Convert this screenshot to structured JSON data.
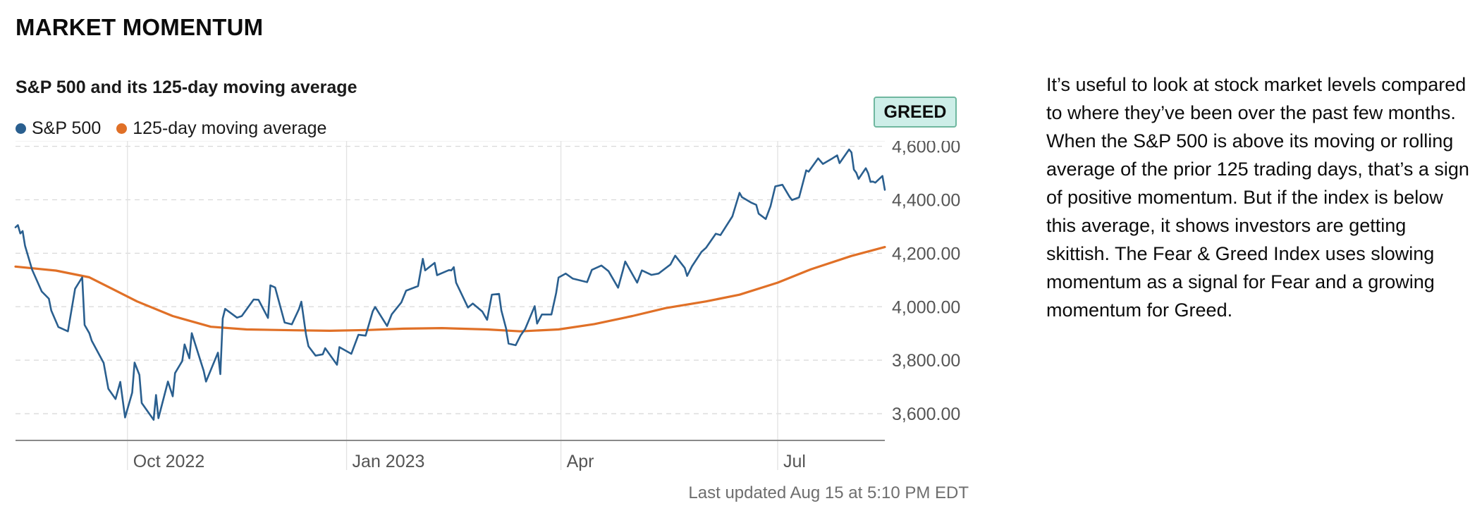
{
  "section_title": "MARKET MOMENTUM",
  "chart_title": "S&P 500 and its 125-day moving average",
  "badge": {
    "label": "GREED",
    "bg": "#cdeee8",
    "border": "#6fb79f"
  },
  "last_updated": "Last updated Aug 15 at 5:10 PM EDT",
  "description": "It’s useful to look at stock market levels compared to where they’ve been over the past few months. When the S&P 500 is above its moving or rolling average of the prior 125 trading days, that’s a sign of positive momentum. But if the index is below this average, it shows investors are getting skittish. The Fear & Greed Index uses slowing momentum as a signal for Fear and a growing momentum for Greed.",
  "chart_data": {
    "type": "line",
    "x_start": "2022-08-15",
    "x_end": "2023-08-15",
    "ylim": [
      3500,
      4620
    ],
    "y_ticks": [
      3600,
      3800,
      4000,
      4200,
      4400,
      4600
    ],
    "y_tick_labels": [
      "3,600.00",
      "3,800.00",
      "4,000.00",
      "4,200.00",
      "4,400.00",
      "4,600.00"
    ],
    "x_ticks": [
      {
        "date": "2022-10-01",
        "label": "Oct 2022"
      },
      {
        "date": "2023-01-01",
        "label": "Jan 2023"
      },
      {
        "date": "2023-04-01",
        "label": "Apr"
      },
      {
        "date": "2023-07-01",
        "label": "Jul"
      }
    ],
    "grid": true,
    "legend_position": "top-left",
    "series": [
      {
        "name": "S&P 500",
        "color": "#2a5f8f",
        "points": [
          [
            "2022-08-15",
            4297
          ],
          [
            "2022-08-16",
            4305
          ],
          [
            "2022-08-17",
            4274
          ],
          [
            "2022-08-18",
            4283
          ],
          [
            "2022-08-19",
            4228
          ],
          [
            "2022-08-22",
            4138
          ],
          [
            "2022-08-26",
            4057
          ],
          [
            "2022-08-29",
            4030
          ],
          [
            "2022-08-30",
            3986
          ],
          [
            "2022-09-02",
            3924
          ],
          [
            "2022-09-06",
            3908
          ],
          [
            "2022-09-09",
            4067
          ],
          [
            "2022-09-12",
            4110
          ],
          [
            "2022-09-13",
            3932
          ],
          [
            "2022-09-15",
            3901
          ],
          [
            "2022-09-16",
            3873
          ],
          [
            "2022-09-21",
            3790
          ],
          [
            "2022-09-23",
            3693
          ],
          [
            "2022-09-26",
            3655
          ],
          [
            "2022-09-28",
            3719
          ],
          [
            "2022-09-30",
            3586
          ],
          [
            "2022-10-03",
            3679
          ],
          [
            "2022-10-04",
            3791
          ],
          [
            "2022-10-06",
            3745
          ],
          [
            "2022-10-07",
            3640
          ],
          [
            "2022-10-12",
            3577
          ],
          [
            "2022-10-13",
            3670
          ],
          [
            "2022-10-14",
            3583
          ],
          [
            "2022-10-18",
            3720
          ],
          [
            "2022-10-20",
            3665
          ],
          [
            "2022-10-21",
            3752
          ],
          [
            "2022-10-24",
            3797
          ],
          [
            "2022-10-25",
            3859
          ],
          [
            "2022-10-27",
            3807
          ],
          [
            "2022-10-28",
            3901
          ],
          [
            "2022-11-02",
            3760
          ],
          [
            "2022-11-03",
            3720
          ],
          [
            "2022-11-08",
            3828
          ],
          [
            "2022-11-09",
            3748
          ],
          [
            "2022-11-10",
            3956
          ],
          [
            "2022-11-11",
            3992
          ],
          [
            "2022-11-16",
            3959
          ],
          [
            "2022-11-18",
            3965
          ],
          [
            "2022-11-23",
            4027
          ],
          [
            "2022-11-25",
            4026
          ],
          [
            "2022-11-29",
            3958
          ],
          [
            "2022-11-30",
            4080
          ],
          [
            "2022-12-02",
            4072
          ],
          [
            "2022-12-06",
            3941
          ],
          [
            "2022-12-09",
            3934
          ],
          [
            "2022-12-12",
            3991
          ],
          [
            "2022-12-13",
            4019
          ],
          [
            "2022-12-15",
            3895
          ],
          [
            "2022-12-16",
            3852
          ],
          [
            "2022-12-19",
            3817
          ],
          [
            "2022-12-22",
            3822
          ],
          [
            "2022-12-23",
            3845
          ],
          [
            "2022-12-28",
            3783
          ],
          [
            "2022-12-29",
            3849
          ],
          [
            "2023-01-03",
            3824
          ],
          [
            "2023-01-06",
            3895
          ],
          [
            "2023-01-09",
            3892
          ],
          [
            "2023-01-12",
            3983
          ],
          [
            "2023-01-13",
            3999
          ],
          [
            "2023-01-18",
            3928
          ],
          [
            "2023-01-20",
            3972
          ],
          [
            "2023-01-24",
            4016
          ],
          [
            "2023-01-26",
            4060
          ],
          [
            "2023-01-31",
            4077
          ],
          [
            "2023-02-02",
            4179
          ],
          [
            "2023-02-03",
            4136
          ],
          [
            "2023-02-07",
            4164
          ],
          [
            "2023-02-08",
            4118
          ],
          [
            "2023-02-13",
            4137
          ],
          [
            "2023-02-14",
            4136
          ],
          [
            "2023-02-15",
            4148
          ],
          [
            "2023-02-16",
            4090
          ],
          [
            "2023-02-21",
            3997
          ],
          [
            "2023-02-23",
            4012
          ],
          [
            "2023-02-27",
            3982
          ],
          [
            "2023-03-01",
            3951
          ],
          [
            "2023-03-03",
            4045
          ],
          [
            "2023-03-06",
            4048
          ],
          [
            "2023-03-07",
            3986
          ],
          [
            "2023-03-09",
            3918
          ],
          [
            "2023-03-10",
            3862
          ],
          [
            "2023-03-13",
            3856
          ],
          [
            "2023-03-15",
            3892
          ],
          [
            "2023-03-17",
            3917
          ],
          [
            "2023-03-21",
            4002
          ],
          [
            "2023-03-22",
            3937
          ],
          [
            "2023-03-24",
            3971
          ],
          [
            "2023-03-28",
            3971
          ],
          [
            "2023-03-30",
            4051
          ],
          [
            "2023-03-31",
            4109
          ],
          [
            "2023-04-03",
            4124
          ],
          [
            "2023-04-06",
            4105
          ],
          [
            "2023-04-12",
            4092
          ],
          [
            "2023-04-14",
            4138
          ],
          [
            "2023-04-18",
            4154
          ],
          [
            "2023-04-21",
            4133
          ],
          [
            "2023-04-25",
            4071
          ],
          [
            "2023-04-27",
            4135
          ],
          [
            "2023-04-28",
            4169
          ],
          [
            "2023-05-03",
            4090
          ],
          [
            "2023-05-05",
            4136
          ],
          [
            "2023-05-09",
            4119
          ],
          [
            "2023-05-12",
            4124
          ],
          [
            "2023-05-17",
            4158
          ],
          [
            "2023-05-19",
            4191
          ],
          [
            "2023-05-23",
            4145
          ],
          [
            "2023-05-24",
            4115
          ],
          [
            "2023-05-26",
            4151
          ],
          [
            "2023-05-30",
            4205
          ],
          [
            "2023-06-01",
            4221
          ],
          [
            "2023-06-05",
            4273
          ],
          [
            "2023-06-07",
            4268
          ],
          [
            "2023-06-12",
            4338
          ],
          [
            "2023-06-15",
            4426
          ],
          [
            "2023-06-16",
            4410
          ],
          [
            "2023-06-20",
            4389
          ],
          [
            "2023-06-22",
            4381
          ],
          [
            "2023-06-23",
            4348
          ],
          [
            "2023-06-26",
            4328
          ],
          [
            "2023-06-28",
            4376
          ],
          [
            "2023-06-30",
            4450
          ],
          [
            "2023-07-03",
            4456
          ],
          [
            "2023-07-06",
            4411
          ],
          [
            "2023-07-07",
            4399
          ],
          [
            "2023-07-10",
            4409
          ],
          [
            "2023-07-13",
            4510
          ],
          [
            "2023-07-14",
            4505
          ],
          [
            "2023-07-18",
            4555
          ],
          [
            "2023-07-20",
            4534
          ],
          [
            "2023-07-24",
            4555
          ],
          [
            "2023-07-26",
            4566
          ],
          [
            "2023-07-27",
            4537
          ],
          [
            "2023-07-31",
            4588
          ],
          [
            "2023-08-01",
            4577
          ],
          [
            "2023-08-02",
            4513
          ],
          [
            "2023-08-03",
            4501
          ],
          [
            "2023-08-04",
            4478
          ],
          [
            "2023-08-07",
            4518
          ],
          [
            "2023-08-08",
            4499
          ],
          [
            "2023-08-09",
            4467
          ],
          [
            "2023-08-10",
            4468
          ],
          [
            "2023-08-11",
            4464
          ],
          [
            "2023-08-14",
            4489
          ],
          [
            "2023-08-15",
            4437
          ]
        ]
      },
      {
        "name": "125-day moving average",
        "color": "#e07027",
        "points": [
          [
            "2022-08-15",
            4150
          ],
          [
            "2022-09-01",
            4135
          ],
          [
            "2022-09-15",
            4110
          ],
          [
            "2022-09-25",
            4065
          ],
          [
            "2022-10-05",
            4020
          ],
          [
            "2022-10-20",
            3965
          ],
          [
            "2022-11-05",
            3925
          ],
          [
            "2022-11-20",
            3915
          ],
          [
            "2022-12-10",
            3912
          ],
          [
            "2022-12-25",
            3910
          ],
          [
            "2023-01-10",
            3913
          ],
          [
            "2023-01-25",
            3918
          ],
          [
            "2023-02-10",
            3920
          ],
          [
            "2023-03-01",
            3915
          ],
          [
            "2023-03-15",
            3908
          ],
          [
            "2023-03-31",
            3915
          ],
          [
            "2023-04-15",
            3935
          ],
          [
            "2023-05-01",
            3965
          ],
          [
            "2023-05-15",
            3995
          ],
          [
            "2023-06-01",
            4020
          ],
          [
            "2023-06-15",
            4045
          ],
          [
            "2023-07-01",
            4090
          ],
          [
            "2023-07-15",
            4140
          ],
          [
            "2023-08-01",
            4190
          ],
          [
            "2023-08-15",
            4223
          ]
        ]
      }
    ]
  }
}
